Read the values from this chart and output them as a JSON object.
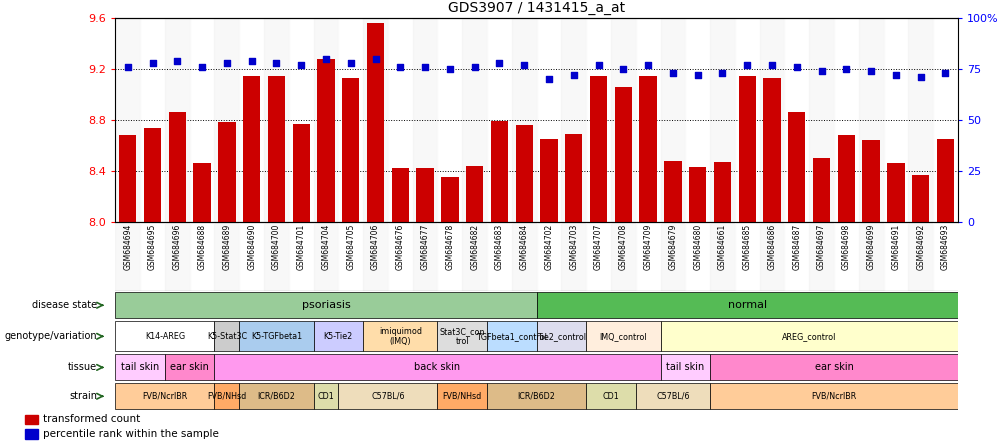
{
  "title": "GDS3907 / 1431415_a_at",
  "samples": [
    "GSM684694",
    "GSM684695",
    "GSM684696",
    "GSM684688",
    "GSM684689",
    "GSM684690",
    "GSM684700",
    "GSM684701",
    "GSM684704",
    "GSM684705",
    "GSM684706",
    "GSM684676",
    "GSM684677",
    "GSM684678",
    "GSM684682",
    "GSM684683",
    "GSM684684",
    "GSM684702",
    "GSM684703",
    "GSM684707",
    "GSM684708",
    "GSM684709",
    "GSM684679",
    "GSM684680",
    "GSM684661",
    "GSM684685",
    "GSM684686",
    "GSM684687",
    "GSM684697",
    "GSM684698",
    "GSM684699",
    "GSM684691",
    "GSM684692",
    "GSM684693"
  ],
  "bar_values": [
    8.68,
    8.74,
    8.86,
    8.46,
    8.78,
    9.14,
    9.14,
    8.77,
    9.28,
    9.13,
    9.56,
    8.42,
    8.42,
    8.35,
    8.44,
    8.79,
    8.76,
    8.65,
    8.69,
    9.14,
    9.06,
    9.14,
    8.48,
    8.43,
    8.47,
    9.14,
    9.13,
    8.86,
    8.5,
    8.68,
    8.64,
    8.46,
    8.37,
    8.65
  ],
  "percentile_values": [
    76,
    78,
    79,
    76,
    78,
    79,
    78,
    77,
    80,
    78,
    80,
    76,
    76,
    75,
    76,
    78,
    77,
    70,
    72,
    77,
    75,
    77,
    73,
    72,
    73,
    77,
    77,
    76,
    74,
    75,
    74,
    72,
    71,
    73
  ],
  "ylim_left": [
    8.0,
    9.6
  ],
  "ylim_right": [
    0,
    100
  ],
  "yticks_left": [
    8.0,
    8.4,
    8.8,
    9.2,
    9.6
  ],
  "yticks_right": [
    0,
    25,
    50,
    75,
    100
  ],
  "bar_color": "#cc0000",
  "dot_color": "#0000cc",
  "hline_values": [
    8.4,
    8.8,
    9.2
  ],
  "disease_groups": [
    {
      "label": "psoriasis",
      "start": 0,
      "end": 16,
      "color": "#99cc99"
    },
    {
      "label": "normal",
      "start": 17,
      "end": 33,
      "color": "#55bb55"
    }
  ],
  "genotype_groups": [
    {
      "label": "K14-AREG",
      "start": 0,
      "end": 3,
      "color": "#ffffff"
    },
    {
      "label": "K5-Stat3C",
      "start": 4,
      "end": 4,
      "color": "#cccccc"
    },
    {
      "label": "K5-TGFbeta1",
      "start": 5,
      "end": 7,
      "color": "#aaccee"
    },
    {
      "label": "K5-Tie2",
      "start": 8,
      "end": 9,
      "color": "#ccccff"
    },
    {
      "label": "imiquimod\n(IMQ)",
      "start": 10,
      "end": 12,
      "color": "#ffddaa"
    },
    {
      "label": "Stat3C_con\ntrol",
      "start": 13,
      "end": 14,
      "color": "#dddddd"
    },
    {
      "label": "TGFbeta1_control",
      "start": 15,
      "end": 16,
      "color": "#bbddff"
    },
    {
      "label": "Tie2_control",
      "start": 17,
      "end": 18,
      "color": "#ddddee"
    },
    {
      "label": "IMQ_control",
      "start": 19,
      "end": 21,
      "color": "#ffeedd"
    },
    {
      "label": "AREG_control",
      "start": 22,
      "end": 33,
      "color": "#ffffcc"
    }
  ],
  "tissue_groups": [
    {
      "label": "tail skin",
      "start": 0,
      "end": 1,
      "color": "#ffccff"
    },
    {
      "label": "ear skin",
      "start": 2,
      "end": 3,
      "color": "#ff88cc"
    },
    {
      "label": "back skin",
      "start": 4,
      "end": 21,
      "color": "#ff99ee"
    },
    {
      "label": "tail skin",
      "start": 22,
      "end": 23,
      "color": "#ffccff"
    },
    {
      "label": "ear skin",
      "start": 24,
      "end": 33,
      "color": "#ff88cc"
    }
  ],
  "strain_groups": [
    {
      "label": "FVB/NcrIBR",
      "start": 0,
      "end": 3,
      "color": "#ffcc99"
    },
    {
      "label": "FVB/NHsd",
      "start": 4,
      "end": 4,
      "color": "#ffaa66"
    },
    {
      "label": "ICR/B6D2",
      "start": 5,
      "end": 7,
      "color": "#ddbb88"
    },
    {
      "label": "CD1",
      "start": 8,
      "end": 8,
      "color": "#ddddaa"
    },
    {
      "label": "C57BL/6",
      "start": 9,
      "end": 12,
      "color": "#eeddbb"
    },
    {
      "label": "FVB/NHsd",
      "start": 13,
      "end": 14,
      "color": "#ffaa66"
    },
    {
      "label": "ICR/B6D2",
      "start": 15,
      "end": 18,
      "color": "#ddbb88"
    },
    {
      "label": "CD1",
      "start": 19,
      "end": 20,
      "color": "#ddddaa"
    },
    {
      "label": "C57BL/6",
      "start": 21,
      "end": 23,
      "color": "#eeddbb"
    },
    {
      "label": "FVB/NcrIBR",
      "start": 24,
      "end": 33,
      "color": "#ffcc99"
    }
  ],
  "row_labels": [
    "disease state",
    "genotype/variation",
    "tissue",
    "strain"
  ],
  "legend_items": [
    {
      "label": "transformed count",
      "color": "#cc0000"
    },
    {
      "label": "percentile rank within the sample",
      "color": "#0000cc"
    }
  ]
}
